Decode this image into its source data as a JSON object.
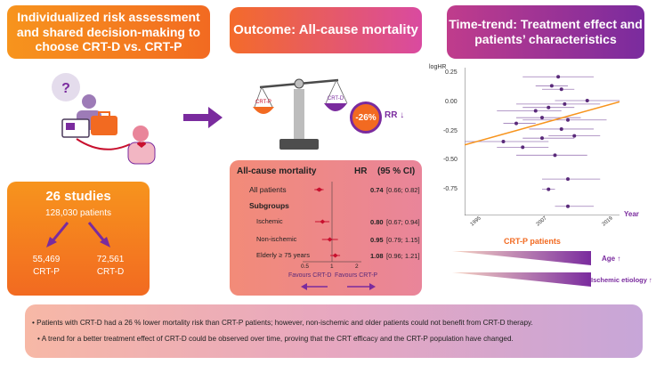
{
  "banners": {
    "left": "Individualized risk assessment and shared decision-making to choose CRT-D vs. CRT-P",
    "middle": "Outcome: All-cause mortality",
    "right": "Time-trend: Treatment effect and patients’ characteristics"
  },
  "studies": {
    "count": "26 studies",
    "patients": "128,030 patients",
    "crtp_n": "55,469",
    "crtp_label": "CRT-P",
    "crtd_n": "72,561",
    "crtd_label": "CRT-D"
  },
  "scale": {
    "left_label": "CRT-P",
    "right_label": "CRT-D",
    "rr_value": "-26%",
    "rr_label": "RR",
    "rr_arrow": "↓"
  },
  "forest": {
    "title": "All-cause mortality",
    "hr_header": "HR",
    "ci_header": "(95 % CI)",
    "rows": [
      {
        "label": "All patients",
        "hr": "0.74",
        "ci": "[0.66; 0.82]",
        "value": 0.74,
        "lo": 0.66,
        "hi": 0.82
      },
      {
        "label": "Ischemic",
        "hr": "0.80",
        "ci": "[0.67; 0.94]",
        "value": 0.8,
        "lo": 0.67,
        "hi": 0.94
      },
      {
        "label": "Non-ischemic",
        "hr": "0.95",
        "ci": "[0.79; 1.15]",
        "value": 0.95,
        "lo": 0.79,
        "hi": 1.15
      },
      {
        "label": "Elderly ≥ 75 years",
        "hr": "1.08",
        "ci": "[0.96; 1.21]",
        "value": 1.08,
        "lo": 0.96,
        "hi": 1.21
      }
    ],
    "subgroups_label": "Subgroups",
    "axis_ticks": [
      "0.5",
      "1",
      "2"
    ],
    "favours_left": "Favours CRT-D",
    "favours_right": "Favours CRT-P"
  },
  "trend_chart": {
    "ylabel": "logHR",
    "xlabel": "Year",
    "y_ticks": [
      "0.25",
      "0.00",
      "-0.25",
      "-0.50",
      "-0.75"
    ],
    "x_ticks": [
      "1995",
      "2007",
      "2019"
    ],
    "ylim": [
      -1.0,
      0.3
    ],
    "xlim": [
      1995,
      2019
    ],
    "fit_line": {
      "x": [
        1995,
        2019
      ],
      "y": [
        -0.38,
        0.0
      ]
    },
    "points": [
      {
        "x": 2009.5,
        "y": 0.22,
        "lo": 2004,
        "hi": 2015
      },
      {
        "x": 2008.5,
        "y": 0.14,
        "lo": 2006,
        "hi": 2011
      },
      {
        "x": 2010,
        "y": 0.11,
        "lo": 2007,
        "hi": 2012
      },
      {
        "x": 2014,
        "y": 0.01,
        "lo": 2009,
        "hi": 2019
      },
      {
        "x": 2010.5,
        "y": -0.02,
        "lo": 2003,
        "hi": 2016
      },
      {
        "x": 2008,
        "y": -0.05,
        "lo": 2004,
        "hi": 2012
      },
      {
        "x": 2006,
        "y": -0.08,
        "lo": 2000,
        "hi": 2010
      },
      {
        "x": 2007,
        "y": -0.14,
        "lo": 2003,
        "hi": 2013
      },
      {
        "x": 2011,
        "y": -0.16,
        "lo": 2004,
        "hi": 2017
      },
      {
        "x": 2003,
        "y": -0.19,
        "lo": 2001,
        "hi": 2006
      },
      {
        "x": 2010,
        "y": -0.24,
        "lo": 2005,
        "hi": 2015
      },
      {
        "x": 2012,
        "y": -0.3,
        "lo": 2008,
        "hi": 2016
      },
      {
        "x": 2007,
        "y": -0.32,
        "lo": 2004,
        "hi": 2012
      },
      {
        "x": 2001,
        "y": -0.35,
        "lo": 1995,
        "hi": 2008
      },
      {
        "x": 2004,
        "y": -0.4,
        "lo": 2000,
        "hi": 2008
      },
      {
        "x": 2009,
        "y": -0.47,
        "lo": 2003,
        "hi": 2014
      },
      {
        "x": 2011,
        "y": -0.68,
        "lo": 2007,
        "hi": 2016
      },
      {
        "x": 2008,
        "y": -0.77,
        "lo": 2007,
        "hi": 2009
      },
      {
        "x": 2011,
        "y": -0.92,
        "lo": 2009,
        "hi": 2015
      }
    ]
  },
  "characteristics": {
    "title": "CRT-P patients",
    "age": "Age",
    "ischemic": "Ischemic etiology",
    "age_arrow": "↑",
    "ischemic_arrow": "↑"
  },
  "summary": {
    "line1": "Patients with CRT-D had a 26 % lower mortality risk than CRT-P patients; however, non-ischemic and older patients could not benefit from CRT-D therapy.",
    "line2": "A trend for a better treatment effect of CRT-D could be observed over time, proving that the CRT efficacy and the CRT-P population have changed."
  },
  "colors": {
    "orange": "#f26a21",
    "purple": "#7a2b9e",
    "dark_red": "#c8102e"
  }
}
